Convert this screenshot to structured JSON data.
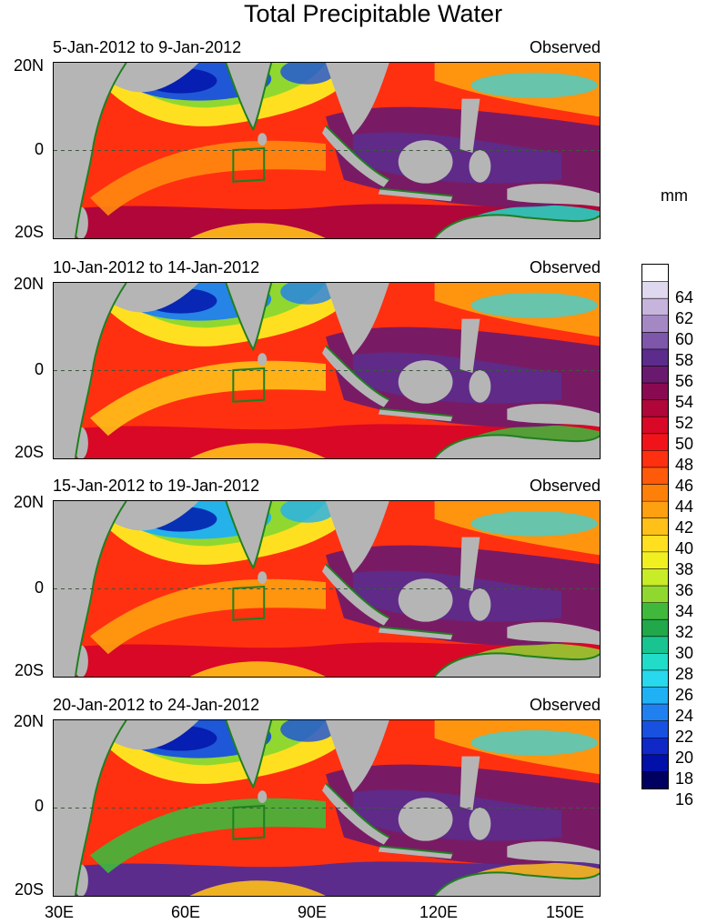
{
  "title": "Total Precipitable Water",
  "units": "mm",
  "panels": [
    {
      "date_range": "5-Jan-2012 to 9-Jan-2012",
      "label": "Observed"
    },
    {
      "date_range": "10-Jan-2012 to 14-Jan-2012",
      "label": "Observed"
    },
    {
      "date_range": "15-Jan-2012 to 19-Jan-2012",
      "label": "Observed"
    },
    {
      "date_range": "20-Jan-2012 to 24-Jan-2012",
      "label": "Observed"
    }
  ],
  "lat_labels": [
    "20N",
    "0",
    "20S"
  ],
  "lon_labels": [
    "30E",
    "60E",
    "90E",
    "120E",
    "150E"
  ],
  "colorbar": {
    "tick_labels": [
      "64",
      "62",
      "60",
      "58",
      "56",
      "54",
      "52",
      "50",
      "48",
      "46",
      "44",
      "42",
      "40",
      "38",
      "36",
      "34",
      "32",
      "30",
      "28",
      "26",
      "24",
      "22",
      "20",
      "18",
      "16"
    ],
    "colors": [
      "#ffffff",
      "#e0d8ee",
      "#c6b4dc",
      "#a488c4",
      "#7e56aa",
      "#5c2c8c",
      "#6a1a6e",
      "#8a0a52",
      "#b0063a",
      "#d80826",
      "#f0141a",
      "#ff3010",
      "#ff5a0a",
      "#ff8008",
      "#ffa010",
      "#ffc018",
      "#ffe020",
      "#f0f020",
      "#c8ec28",
      "#90d830",
      "#40b83c",
      "#20a84a",
      "#18c490",
      "#20dcc8",
      "#28d8ec",
      "#20b0f4",
      "#2080f0",
      "#1850e0",
      "#1028c8",
      "#0010a8",
      "#000060"
    ]
  },
  "colors": {
    "land": "#b5b5b5",
    "coast": "#1f7f1f",
    "box": "#1f7f1f"
  }
}
